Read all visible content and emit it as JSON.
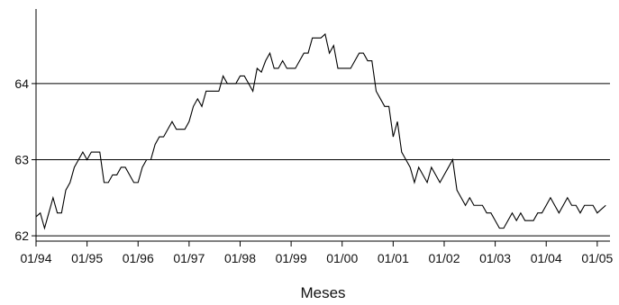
{
  "chart_data": {
    "type": "line",
    "title": "",
    "xlabel": "Meses",
    "ylabel": "",
    "x_tick_labels": [
      "01/94",
      "01/95",
      "01/96",
      "01/97",
      "01/98",
      "01/99",
      "01/00",
      "01/01",
      "01/02",
      "01/03",
      "01/04",
      "01/05"
    ],
    "y_tick_labels": [
      "62",
      "63",
      "64"
    ],
    "ylim": [
      61.93,
      64.98
    ],
    "xlim": [
      0,
      135
    ],
    "grid": "horizontal lines at y-ticks",
    "series": [
      {
        "x": [
          0,
          1,
          2,
          3,
          4,
          5,
          6,
          7,
          8,
          9,
          10,
          11,
          12,
          13,
          14,
          15,
          16,
          17,
          18,
          19,
          20,
          21,
          22,
          23,
          24,
          25,
          26,
          27,
          28,
          29,
          30,
          31,
          32,
          33,
          34,
          35,
          36,
          37,
          38,
          39,
          40,
          41,
          42,
          43,
          44,
          45,
          46,
          47,
          48,
          49,
          50,
          51,
          52,
          53,
          54,
          55,
          56,
          57,
          58,
          59,
          60,
          61,
          62,
          63,
          64,
          65,
          66,
          67,
          68,
          69,
          70,
          71,
          72,
          73,
          74,
          75,
          76,
          77,
          78,
          79,
          80,
          81,
          82,
          83,
          84,
          85,
          86,
          87,
          88,
          89,
          90,
          91,
          92,
          93,
          94,
          95,
          96,
          97,
          98,
          99,
          100,
          101,
          102,
          103,
          104,
          105,
          106,
          107,
          108,
          109,
          110,
          111,
          112,
          113,
          114,
          115,
          116,
          117,
          118,
          119,
          120,
          121,
          122,
          123,
          124,
          125,
          126,
          127,
          128,
          129,
          130,
          131,
          132,
          133,
          134
        ],
        "y": [
          62.25,
          62.3,
          62.1,
          62.3,
          62.5,
          62.3,
          62.3,
          62.6,
          62.7,
          62.9,
          63.0,
          63.1,
          63.0,
          63.1,
          63.1,
          63.1,
          62.7,
          62.7,
          62.8,
          62.8,
          62.9,
          62.9,
          62.8,
          62.7,
          62.7,
          62.9,
          63.0,
          63.0,
          63.2,
          63.3,
          63.3,
          63.4,
          63.5,
          63.4,
          63.4,
          63.4,
          63.5,
          63.7,
          63.8,
          63.7,
          63.9,
          63.9,
          63.9,
          63.9,
          64.1,
          64.0,
          64.0,
          64.0,
          64.1,
          64.1,
          64.0,
          63.9,
          64.2,
          64.15,
          64.3,
          64.4,
          64.2,
          64.2,
          64.3,
          64.2,
          64.2,
          64.2,
          64.3,
          64.4,
          64.4,
          64.6,
          64.6,
          64.6,
          64.65,
          64.4,
          64.5,
          64.2,
          64.2,
          64.2,
          64.2,
          64.3,
          64.4,
          64.4,
          64.3,
          64.3,
          63.9,
          63.8,
          63.7,
          63.7,
          63.3,
          63.5,
          63.1,
          63.0,
          62.9,
          62.7,
          62.9,
          62.8,
          62.7,
          62.9,
          62.8,
          62.7,
          62.8,
          62.9,
          63.0,
          62.6,
          62.5,
          62.4,
          62.5,
          62.4,
          62.4,
          62.4,
          62.3,
          62.3,
          62.2,
          62.1,
          62.1,
          62.2,
          62.3,
          62.2,
          62.3,
          62.2,
          62.2,
          62.2,
          62.3,
          62.3,
          62.4,
          62.5,
          62.4,
          62.3,
          62.4,
          62.5,
          62.4,
          62.4,
          62.3,
          62.4,
          62.4,
          62.4,
          62.3,
          62.35,
          62.4
        ]
      }
    ]
  }
}
